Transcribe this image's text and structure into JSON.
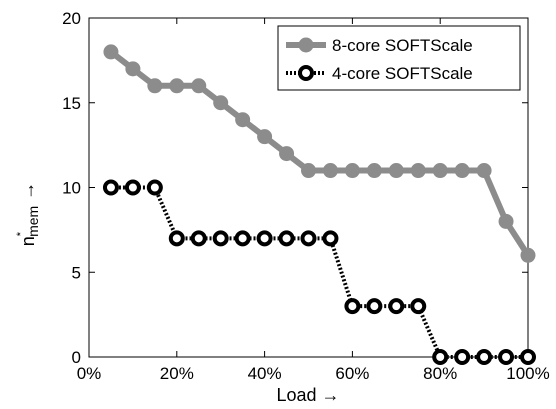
{
  "chart_data": {
    "type": "line",
    "title": "",
    "xlabel": "Load →",
    "ylabel": "n*mem →",
    "ylabel_parts": {
      "base": "n",
      "sup": "*",
      "sub": "mem",
      "arrow": "→"
    },
    "xlim": [
      0,
      100
    ],
    "ylim": [
      0,
      20
    ],
    "x_ticks": [
      0,
      20,
      40,
      60,
      80,
      100
    ],
    "x_tick_labels": [
      "0%",
      "20%",
      "40%",
      "60%",
      "80%",
      "100%"
    ],
    "y_ticks": [
      0,
      5,
      10,
      15,
      20
    ],
    "y_tick_labels": [
      "0",
      "5",
      "10",
      "15",
      "20"
    ],
    "grid": false,
    "legend_position": "top-right",
    "series": [
      {
        "name": "8-core SOFTScale",
        "color": "#8c8c8c",
        "line_style": "solid",
        "marker": "filled-circle",
        "x": [
          5,
          10,
          15,
          20,
          25,
          30,
          35,
          40,
          45,
          50,
          55,
          60,
          65,
          70,
          75,
          80,
          85,
          90,
          95,
          100
        ],
        "values": [
          18,
          17,
          16,
          16,
          16,
          15,
          14,
          13,
          12,
          11,
          11,
          11,
          11,
          11,
          11,
          11,
          11,
          11,
          8,
          6
        ]
      },
      {
        "name": "4-core SOFTScale",
        "color": "#000000",
        "line_style": "dotted",
        "marker": "hollow-circle",
        "x": [
          5,
          10,
          15,
          20,
          25,
          30,
          35,
          40,
          45,
          50,
          55,
          60,
          65,
          70,
          75,
          80,
          85,
          90,
          95,
          100
        ],
        "values": [
          10,
          10,
          10,
          7,
          7,
          7,
          7,
          7,
          7,
          7,
          7,
          3,
          3,
          3,
          3,
          0,
          0,
          0,
          0,
          0
        ]
      }
    ]
  }
}
